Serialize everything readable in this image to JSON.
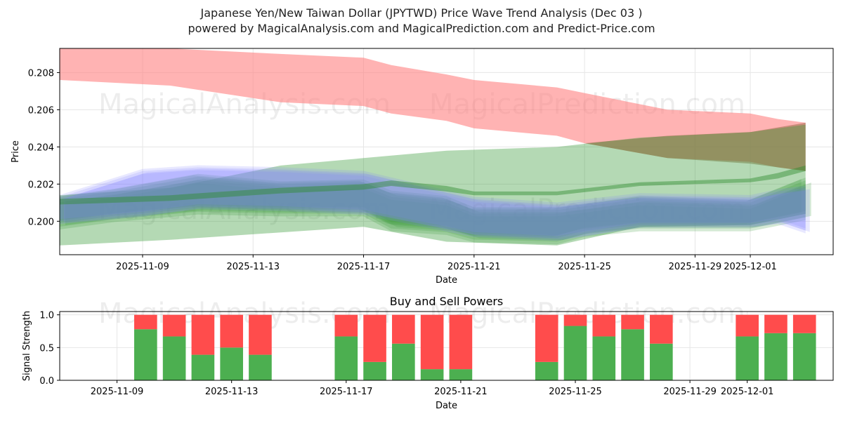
{
  "header": {
    "title": "Japanese Yen/New Taiwan Dollar (JPYTWD) Price Wave Trend Analysis (Dec 03 )",
    "subtitle": "powered by MagicalAnalysis.com and MagicalPrediction.com and Predict-Price.com"
  },
  "watermarks": {
    "left": "MagicalAnalysis.com",
    "right": "MagicalPrediction.com"
  },
  "colors": {
    "red_band": "#ff8080",
    "green_band": "#3a9a3a",
    "blue_band": "#8080ff",
    "buy": "#4caf50",
    "sell": "#ff4c4c"
  },
  "chart_data": [
    {
      "type": "area",
      "title": "",
      "xlabel": "Date",
      "ylabel": "Price",
      "xlim": [
        "2025-11-06",
        "2025-12-04"
      ],
      "ylim": [
        0.1982,
        0.2093
      ],
      "x_ticks": [
        "2025-11-09",
        "2025-11-13",
        "2025-11-17",
        "2025-11-21",
        "2025-11-25",
        "2025-11-29",
        "2025-12-01"
      ],
      "y_ticks": [
        "0.200",
        "0.202",
        "0.204",
        "0.206",
        "0.208"
      ],
      "grid": true,
      "series": [
        {
          "name": "red-band",
          "x": [
            "2025-11-06",
            "2025-11-10",
            "2025-11-14",
            "2025-11-17",
            "2025-11-18",
            "2025-11-20",
            "2025-11-21",
            "2025-11-24",
            "2025-11-25",
            "2025-11-28",
            "2025-12-01",
            "2025-12-02",
            "2025-12-03"
          ],
          "upper": [
            0.2093,
            0.2093,
            0.209,
            0.2088,
            0.2084,
            0.2079,
            0.2076,
            0.2072,
            0.2069,
            0.206,
            0.2058,
            0.2055,
            0.2053
          ],
          "lower": [
            0.2076,
            0.2073,
            0.2064,
            0.2062,
            0.2058,
            0.2054,
            0.205,
            0.2046,
            0.2042,
            0.2034,
            0.2032,
            0.2029,
            0.2027
          ]
        },
        {
          "name": "brown-band",
          "x": [
            "2025-11-25",
            "2025-11-28",
            "2025-12-01",
            "2025-12-03"
          ],
          "upper": [
            0.2042,
            0.2046,
            0.2048,
            0.2053
          ],
          "lower": [
            0.2042,
            0.2034,
            0.2031,
            0.2027
          ]
        },
        {
          "name": "wide-green-band",
          "x": [
            "2025-11-06",
            "2025-11-10",
            "2025-11-14",
            "2025-11-17",
            "2025-11-20",
            "2025-11-24",
            "2025-11-27",
            "2025-12-01",
            "2025-12-03"
          ],
          "upper": [
            0.2014,
            0.2018,
            0.203,
            0.2034,
            0.2038,
            0.204,
            0.2045,
            0.2048,
            0.2052
          ],
          "lower": [
            0.1987,
            0.199,
            0.1994,
            0.1997,
            0.1989,
            0.1987,
            0.1997,
            0.1998,
            0.2004
          ]
        },
        {
          "name": "green-wave-cluster",
          "x": [
            "2025-11-06",
            "2025-11-08",
            "2025-11-11",
            "2025-11-14",
            "2025-11-17",
            "2025-11-18",
            "2025-11-20",
            "2025-11-21",
            "2025-11-24",
            "2025-11-25",
            "2025-11-27",
            "2025-12-01",
            "2025-12-02",
            "2025-12-03"
          ],
          "upper": [
            0.2012,
            0.2016,
            0.2024,
            0.202,
            0.2021,
            0.2015,
            0.2012,
            0.2006,
            0.2006,
            0.2008,
            0.2012,
            0.201,
            0.2016,
            0.2022
          ],
          "lower": [
            0.1999,
            0.2003,
            0.2007,
            0.2006,
            0.2006,
            0.1998,
            0.1996,
            0.1992,
            0.1991,
            0.1995,
            0.1998,
            0.1998,
            0.2001,
            0.2004
          ]
        },
        {
          "name": "blue-wave-cluster",
          "x": [
            "2025-11-06",
            "2025-11-09",
            "2025-11-11",
            "2025-11-14",
            "2025-11-17",
            "2025-11-21",
            "2025-11-24",
            "2025-11-27",
            "2025-12-01",
            "2025-12-02",
            "2025-12-03"
          ],
          "upper": [
            0.2013,
            0.2027,
            0.2029,
            0.2028,
            0.2026,
            0.2012,
            0.2009,
            0.2014,
            0.2013,
            0.2016,
            0.2018
          ],
          "lower": [
            0.2,
            0.2004,
            0.2008,
            0.2007,
            0.2005,
            0.1993,
            0.1991,
            0.1998,
            0.1998,
            0.2,
            0.1995
          ]
        },
        {
          "name": "green-trend-line",
          "x": [
            "2025-11-06",
            "2025-11-10",
            "2025-11-14",
            "2025-11-17",
            "2025-11-18",
            "2025-11-20",
            "2025-11-21",
            "2025-11-24",
            "2025-11-27",
            "2025-12-01",
            "2025-12-02",
            "2025-12-03"
          ],
          "upper": [
            0.2012,
            0.2014,
            0.2018,
            0.202,
            0.2022,
            0.2019,
            0.2016,
            0.2016,
            0.2021,
            0.2023,
            0.2026,
            0.203
          ],
          "lower": [
            0.2009,
            0.2011,
            0.2015,
            0.2017,
            0.2019,
            0.2016,
            0.2014,
            0.2014,
            0.2019,
            0.2021,
            0.2023,
            0.2027
          ]
        }
      ]
    },
    {
      "type": "bar",
      "title": "Buy and Sell Powers",
      "xlabel": "Date",
      "ylabel": "Signal Strength",
      "xlim": [
        "2025-11-07",
        "2025-12-04"
      ],
      "ylim": [
        0,
        1.05
      ],
      "x_ticks": [
        "2025-11-09",
        "2025-11-13",
        "2025-11-17",
        "2025-11-21",
        "2025-11-25",
        "2025-11-29",
        "2025-12-01"
      ],
      "y_ticks": [
        "0.0",
        "0.5",
        "1.0"
      ],
      "categories": [
        "2025-11-10",
        "2025-11-11",
        "2025-11-12",
        "2025-11-13",
        "2025-11-14",
        "2025-11-17",
        "2025-11-18",
        "2025-11-19",
        "2025-11-20",
        "2025-11-21",
        "2025-11-24",
        "2025-11-25",
        "2025-11-26",
        "2025-11-27",
        "2025-11-28",
        "2025-12-01",
        "2025-12-02",
        "2025-12-03"
      ],
      "series": [
        {
          "name": "Buy",
          "values": [
            0.78,
            0.67,
            0.39,
            0.5,
            0.39,
            0.67,
            0.28,
            0.56,
            0.17,
            0.17,
            0.28,
            0.83,
            0.67,
            0.78,
            0.56,
            0.67,
            0.72,
            0.72
          ]
        },
        {
          "name": "Sell",
          "values": [
            0.22,
            0.33,
            0.61,
            0.5,
            0.61,
            0.33,
            0.72,
            0.44,
            0.83,
            0.83,
            0.72,
            0.17,
            0.33,
            0.22,
            0.44,
            0.33,
            0.28,
            0.28
          ]
        }
      ]
    }
  ]
}
